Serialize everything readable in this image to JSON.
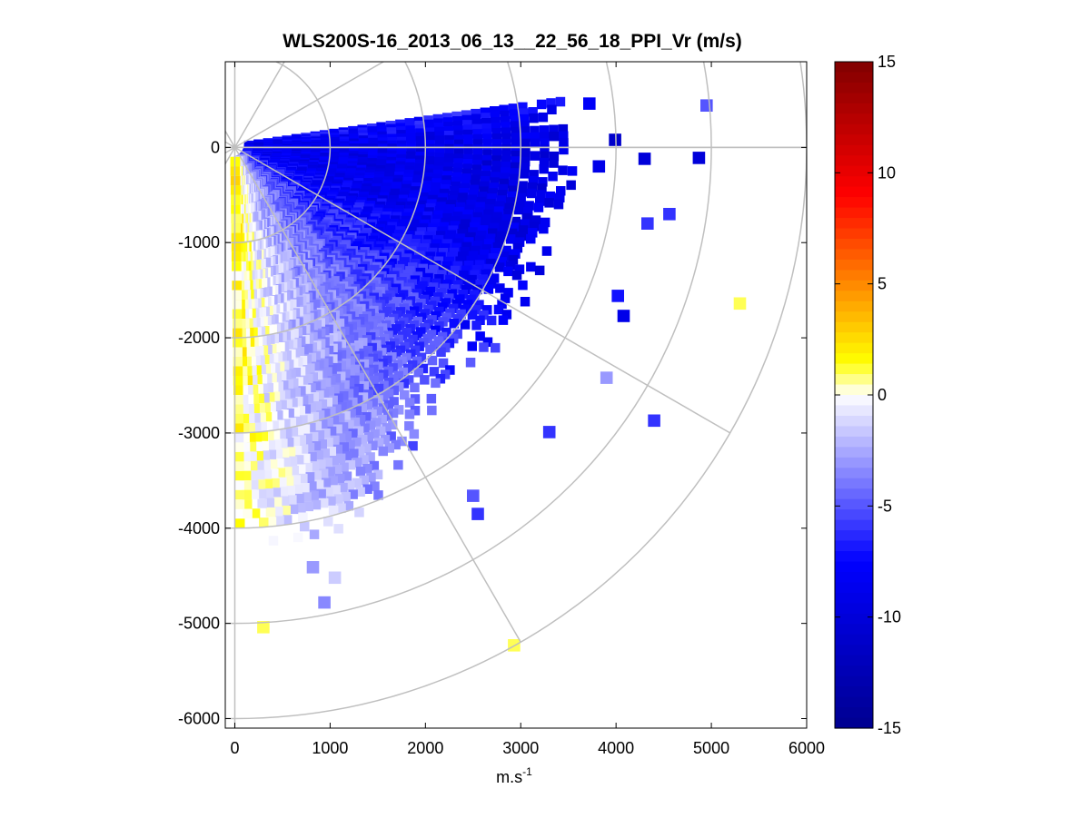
{
  "chart_data": {
    "type": "heatmap",
    "subtype": "polar-ppi-scan",
    "title": "WLS200S-16_2013_06_13__22_56_18_PPI_Vr (m/s)",
    "xlabel_base": "m.s",
    "xlabel_exp": "-1",
    "ylabel": "",
    "xlim": [
      -100,
      6000
    ],
    "ylim": [
      -6100,
      900
    ],
    "x_ticks": [
      0,
      1000,
      2000,
      3000,
      4000,
      5000,
      6000
    ],
    "x_tick_labels": [
      "0",
      "1000",
      "2000",
      "3000",
      "4000",
      "5000",
      "6000"
    ],
    "y_ticks": [
      0,
      -1000,
      -2000,
      -3000,
      -4000,
      -5000,
      -6000
    ],
    "y_tick_labels": [
      "0",
      "-1000",
      "-2000",
      "-3000",
      "-4000",
      "-5000",
      "-6000"
    ],
    "range_rings_m": [
      1000,
      2000,
      3000,
      4000,
      5000,
      6000
    ],
    "azimuth_lines_deg": [
      0,
      30,
      60,
      120,
      150,
      180
    ],
    "colorbar": {
      "min": -15,
      "max": 15,
      "ticks": [
        15,
        10,
        5,
        0,
        -5,
        -10,
        -15
      ],
      "tick_labels": [
        "15",
        "10",
        "5",
        "0",
        "-5",
        "-10",
        "-15"
      ],
      "colormap": [
        "#00008f",
        "#0000ff",
        "#ffffff",
        "#ffff00",
        "#ff0000",
        "#800000"
      ]
    },
    "scan": {
      "azimuth_range_deg": [
        -90,
        8
      ],
      "range_gate_m": 100,
      "profile": [
        {
          "angle_deg": 8,
          "velocity_ms": -7
        },
        {
          "angle_deg": 0,
          "velocity_ms": -9
        },
        {
          "angle_deg": -20,
          "velocity_ms": -8.5
        },
        {
          "angle_deg": -40,
          "velocity_ms": -6
        },
        {
          "angle_deg": -60,
          "velocity_ms": -3.5
        },
        {
          "angle_deg": -75,
          "velocity_ms": -1.5
        },
        {
          "angle_deg": -85,
          "velocity_ms": 0.5
        },
        {
          "angle_deg": -90,
          "velocity_ms": 1.5
        }
      ],
      "max_range_profile": [
        {
          "angle_deg": 8,
          "range_m": 3650
        },
        {
          "angle_deg": -10,
          "range_m": 3600
        },
        {
          "angle_deg": -35,
          "range_m": 3500
        },
        {
          "angle_deg": -50,
          "range_m": 3450
        },
        {
          "angle_deg": -60,
          "range_m": 3700
        },
        {
          "angle_deg": -72,
          "range_m": 4300
        },
        {
          "angle_deg": -85,
          "range_m": 4200
        },
        {
          "angle_deg": -90,
          "range_m": 4100
        }
      ]
    },
    "isolated_returns": [
      {
        "x": 2930,
        "y": -5230,
        "velocity_ms": 1
      },
      {
        "x": 300,
        "y": -5040,
        "velocity_ms": 1
      },
      {
        "x": 820,
        "y": -4410,
        "velocity_ms": -3
      },
      {
        "x": 1050,
        "y": -4520,
        "velocity_ms": -1.5
      },
      {
        "x": 940,
        "y": -4780,
        "velocity_ms": -3.5
      },
      {
        "x": 2500,
        "y": -3660,
        "velocity_ms": -5
      },
      {
        "x": 2550,
        "y": -3850,
        "velocity_ms": -6
      },
      {
        "x": 4400,
        "y": -2870,
        "velocity_ms": -6
      },
      {
        "x": 3900,
        "y": -2420,
        "velocity_ms": -3
      },
      {
        "x": 3300,
        "y": -2990,
        "velocity_ms": -6
      },
      {
        "x": 4080,
        "y": -1770,
        "velocity_ms": -9
      },
      {
        "x": 4020,
        "y": -1560,
        "velocity_ms": -7
      },
      {
        "x": 4330,
        "y": -800,
        "velocity_ms": -6
      },
      {
        "x": 4560,
        "y": -700,
        "velocity_ms": -6
      },
      {
        "x": 5300,
        "y": -1640,
        "velocity_ms": 1
      },
      {
        "x": 4950,
        "y": 440,
        "velocity_ms": -5
      },
      {
        "x": 4870,
        "y": -110,
        "velocity_ms": -10
      },
      {
        "x": 4300,
        "y": -120,
        "velocity_ms": -10
      },
      {
        "x": 3990,
        "y": 80,
        "velocity_ms": -11
      },
      {
        "x": 3820,
        "y": -200,
        "velocity_ms": -9
      },
      {
        "x": 3720,
        "y": 460,
        "velocity_ms": -8
      }
    ]
  }
}
